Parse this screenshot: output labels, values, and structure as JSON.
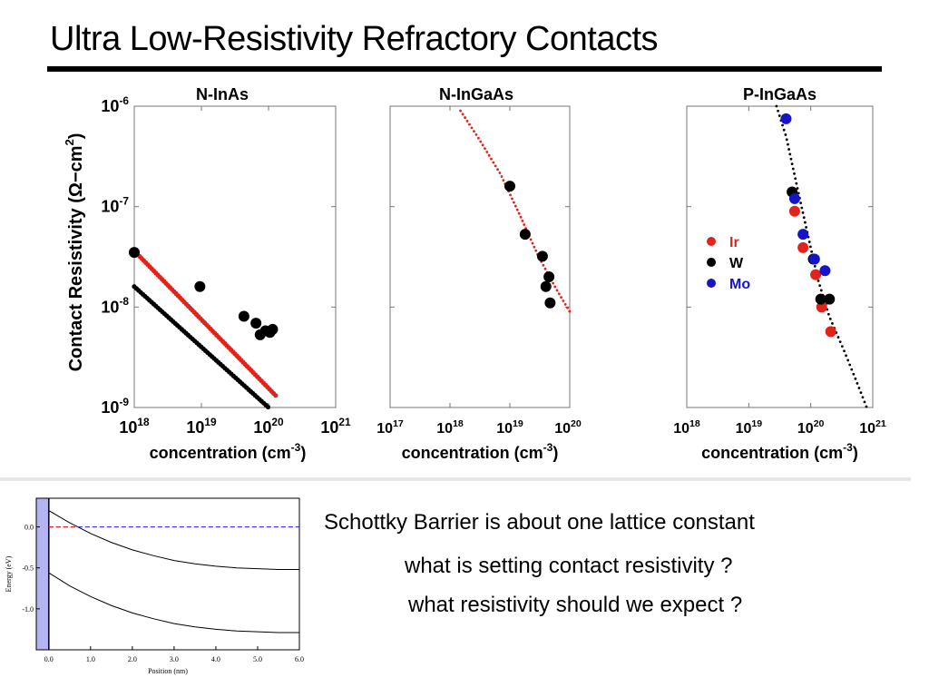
{
  "title": "Ultra Low-Resistivity Refractory Contacts",
  "questions": [
    "Schottky Barrier is about one lattice constant",
    "what  is setting contact resistivity ?",
    "what resistivity should we expect ?"
  ],
  "colors": {
    "red": "#e32219",
    "black": "#000000",
    "blue": "#1414c8",
    "dash_blue": "#1a1ad6",
    "fill_blue": "#b4b4f2"
  },
  "chart_data": [
    {
      "type": "scatter",
      "title": "N-InAs",
      "ylabel": "Contact Resistivity (Ω−cm²)",
      "xlabel": "concentration (cm⁻³)",
      "xscale": "log",
      "yscale": "log",
      "xlim": [
        1e+18,
        1e+21
      ],
      "ylim": [
        1e-09,
        1e-06
      ],
      "x_ticks": [
        "10^18",
        "10^19",
        "10^20",
        "10^21"
      ],
      "y_ticks": [
        "10^-6",
        "10^-7",
        "10^-8",
        "10^-9"
      ],
      "series": [
        {
          "kind": "dotted-line",
          "color": "red",
          "x": [
            1.2e+18,
            1.3e+20
          ],
          "y": [
            3.2e-08,
            1.3e-09
          ]
        },
        {
          "kind": "dotted-line",
          "color": "black",
          "x": [
            1e+18,
            1e+20
          ],
          "y": [
            1.6e-08,
            1e-09
          ]
        },
        {
          "kind": "points",
          "color": "black",
          "x": [
            1e+18,
            9.5e+18,
            4.3e+19,
            6.5e+19,
            7.5e+19,
            9e+19,
            1.05e+20,
            1.15e+20
          ],
          "y": [
            3.5e-08,
            1.6e-08,
            8.1e-09,
            6.9e-09,
            5.3e-09,
            5.8e-09,
            5.6e-09,
            6e-09
          ]
        }
      ]
    },
    {
      "type": "scatter",
      "title": "N-InGaAs",
      "xlabel": "concentration (cm⁻³)",
      "xscale": "log",
      "yscale": "log",
      "xlim": [
        1e+17,
        1e+20
      ],
      "ylim": [
        1e-09,
        1e-06
      ],
      "x_ticks": [
        "10^17",
        "10^18",
        "10^19",
        "10^20"
      ],
      "series": [
        {
          "kind": "dotted-curve",
          "color": "red",
          "x": [
            1.5e+18,
            3e+18,
            7e+18,
            1.5e+19,
            3e+19,
            6e+19,
            1e+20
          ],
          "y": [
            9e-07,
            4.8e-07,
            2.1e-07,
            8e-08,
            3.2e-08,
            1.5e-08,
            9e-09
          ]
        },
        {
          "kind": "points",
          "color": "black",
          "x": [
            1e+19,
            1.8e+19,
            3.5e+19,
            4.5e+19,
            4e+19,
            4.7e+19
          ],
          "y": [
            1.6e-07,
            5.3e-08,
            3.2e-08,
            2e-08,
            1.6e-08,
            1.1e-08
          ]
        }
      ]
    },
    {
      "type": "scatter",
      "title": "P-InGaAs",
      "xlabel": "concentration (cm⁻³)",
      "xscale": "log",
      "yscale": "log",
      "xlim": [
        1e+18,
        1e+21
      ],
      "ylim": [
        1e-09,
        1e-06
      ],
      "x_ticks": [
        "10^18",
        "10^19",
        "10^20",
        "10^21"
      ],
      "legend": {
        "position": "left",
        "entries": [
          {
            "name": "Ir",
            "color": "red"
          },
          {
            "name": "W",
            "color": "black"
          },
          {
            "name": "Mo",
            "color": "blue"
          }
        ]
      },
      "series": [
        {
          "kind": "dotted-curve",
          "color": "black",
          "x": [
            2.8e+19,
            4e+19,
            6e+19,
            9e+19,
            1.3e+20,
            2e+20,
            3.5e+20,
            5.5e+20,
            8e+20
          ],
          "y": [
            1e-06,
            5e-07,
            1.6e-07,
            5.2e-08,
            1.9e-08,
            8e-09,
            3.6e-09,
            1.8e-09,
            1e-09
          ]
        },
        {
          "kind": "points",
          "name": "Ir",
          "color": "red",
          "x": [
            5.5e+19,
            7.5e+19,
            1.2e+20,
            1.5e+20,
            2.1e+20
          ],
          "y": [
            9e-08,
            3.9e-08,
            2.1e-08,
            1e-08,
            5.7e-09
          ]
        },
        {
          "kind": "points",
          "name": "W",
          "color": "black",
          "x": [
            5e+19,
            1.1e+20,
            1.45e+20,
            2e+20
          ],
          "y": [
            1.4e-07,
            3e-08,
            1.2e-08,
            1.2e-08
          ]
        },
        {
          "kind": "points",
          "name": "Mo",
          "color": "blue",
          "x": [
            4e+19,
            5.5e+19,
            7.5e+19,
            1.15e+20,
            1.7e+20
          ],
          "y": [
            7.5e-07,
            1.2e-07,
            5.3e-08,
            3e-08,
            2.3e-08
          ]
        }
      ]
    },
    {
      "type": "line",
      "xlabel": "Position (nm)",
      "ylabel": "Energy (eV)",
      "xlim": [
        -0.3,
        6.0
      ],
      "ylim": [
        -1.5,
        0.35
      ],
      "x_ticks": [
        "0.0",
        "1.0",
        "2.0",
        "3.0",
        "4.0",
        "5.0",
        "6.0"
      ],
      "y_ticks": [
        "0.0",
        "-0.5",
        "-1.0"
      ],
      "series": [
        {
          "kind": "line",
          "color": "black",
          "x": [
            0,
            0.5,
            1,
            1.5,
            2,
            2.5,
            3,
            3.5,
            4,
            4.5,
            5,
            5.5,
            6
          ],
          "y": [
            0.2,
            0.05,
            -0.08,
            -0.19,
            -0.28,
            -0.35,
            -0.41,
            -0.45,
            -0.48,
            -0.5,
            -0.51,
            -0.52,
            -0.52
          ]
        },
        {
          "kind": "line",
          "color": "black",
          "x": [
            0,
            0.5,
            1,
            1.5,
            2,
            2.5,
            3,
            3.5,
            4,
            4.5,
            5,
            5.5,
            6
          ],
          "y": [
            -0.56,
            -0.72,
            -0.85,
            -0.96,
            -1.05,
            -1.12,
            -1.18,
            -1.22,
            -1.25,
            -1.27,
            -1.28,
            -1.29,
            -1.29
          ]
        },
        {
          "kind": "dashed-line",
          "color": "dash_blue",
          "x": [
            0,
            6
          ],
          "y": [
            0,
            0
          ]
        },
        {
          "kind": "dashed-line",
          "color": "red",
          "x": [
            0,
            0.7
          ],
          "y": [
            0,
            0
          ]
        }
      ],
      "shaded_region": {
        "x": [
          -0.3,
          0
        ]
      }
    }
  ]
}
